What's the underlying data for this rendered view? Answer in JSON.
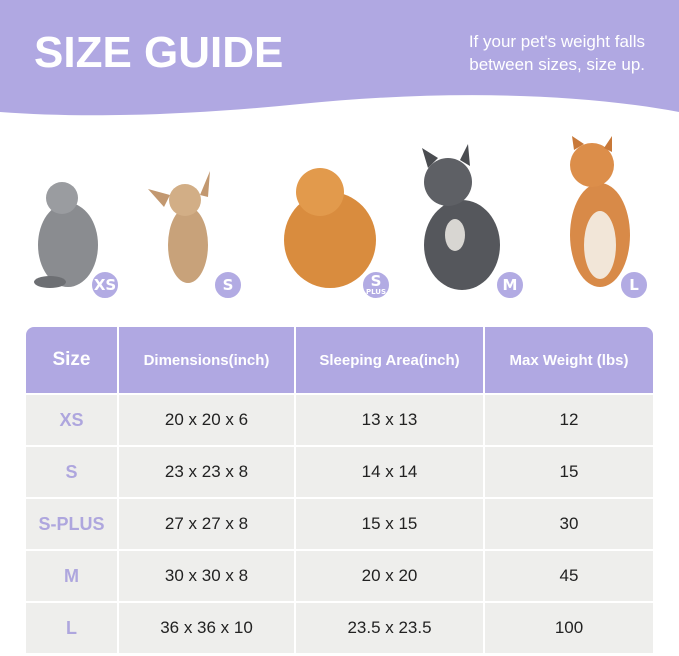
{
  "header": {
    "title": "SIZE GUIDE",
    "note_line1": "If your pet's weight falls",
    "note_line2": "between sizes, size up."
  },
  "colors": {
    "accent": "#b0a8e2",
    "row_bg": "#eeeeec"
  },
  "pets": [
    {
      "animal": "cat",
      "badge": "XS"
    },
    {
      "animal": "chihuahua",
      "badge": "S"
    },
    {
      "animal": "pomeranian",
      "badge": "S",
      "badge_sub": "PLUS"
    },
    {
      "animal": "french-bulldog",
      "badge": "M"
    },
    {
      "animal": "shiba-inu",
      "badge": "L"
    }
  ],
  "table": {
    "headers": [
      "Size",
      "Dimensions(inch)",
      "Sleeping Area(inch)",
      "Max Weight (lbs)"
    ],
    "rows": [
      [
        "XS",
        "20 x 20 x 6",
        "13 x 13",
        "12"
      ],
      [
        "S",
        "23 x 23 x 8",
        "14 x 14",
        "15"
      ],
      [
        "S-PLUS",
        "27 x 27 x 8",
        "15 x 15",
        "30"
      ],
      [
        "M",
        "30 x 30 x 8",
        "20 x 20",
        "45"
      ],
      [
        "L",
        "36 x 36 x 10",
        "23.5 x 23.5",
        "100"
      ]
    ]
  }
}
